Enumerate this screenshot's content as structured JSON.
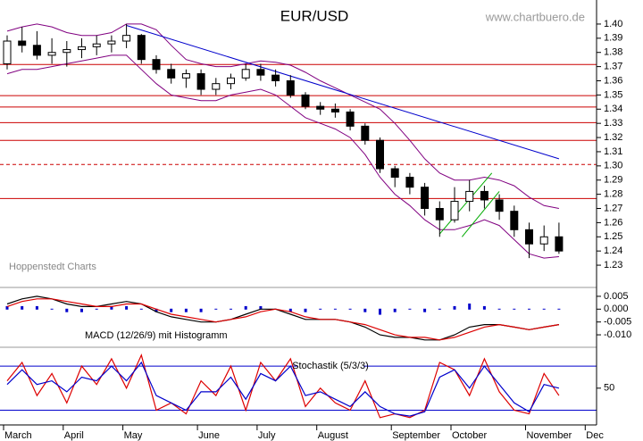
{
  "chart_data": [
    {
      "type": "candlestick",
      "title": "EUR/USD",
      "source": "www.chartbuero.de",
      "annotation": "Hoppenstedt Charts",
      "categories": [
        "March",
        null,
        null,
        null,
        "April",
        null,
        null,
        null,
        "May",
        null,
        null,
        null,
        null,
        "June",
        null,
        null,
        null,
        "July",
        null,
        null,
        null,
        "August",
        null,
        null,
        null,
        null,
        "September",
        null,
        null,
        null,
        "October",
        null,
        null,
        null,
        null,
        "November",
        null,
        null,
        null,
        "Dec"
      ],
      "open": [
        1.372,
        1.388,
        1.385,
        1.378,
        1.38,
        1.382,
        1.384,
        1.386,
        1.388,
        1.392,
        1.375,
        1.368,
        1.362,
        1.365,
        1.354,
        1.358,
        1.362,
        1.368,
        1.364,
        1.36,
        1.35,
        1.342,
        1.34,
        1.338,
        1.328,
        1.318,
        1.298,
        1.292,
        1.285,
        1.27,
        1.262,
        1.275,
        1.282,
        1.276,
        1.268,
        1.255,
        1.245,
        1.25,
        null,
        null
      ],
      "high": [
        1.392,
        1.398,
        1.395,
        1.39,
        1.388,
        1.39,
        1.392,
        1.392,
        1.4,
        1.393,
        1.378,
        1.372,
        1.368,
        1.368,
        1.362,
        1.365,
        1.372,
        1.372,
        1.368,
        1.364,
        1.352,
        1.345,
        1.344,
        1.34,
        1.33,
        1.32,
        1.3,
        1.295,
        1.288,
        1.275,
        1.285,
        1.29,
        1.286,
        1.28,
        1.272,
        1.26,
        1.258,
        1.26,
        null,
        null
      ],
      "low": [
        1.368,
        1.38,
        1.375,
        1.372,
        1.37,
        1.376,
        1.378,
        1.38,
        1.383,
        1.372,
        1.365,
        1.358,
        1.355,
        1.35,
        1.35,
        1.354,
        1.36,
        1.36,
        1.356,
        1.348,
        1.34,
        1.336,
        1.334,
        1.325,
        1.315,
        1.295,
        1.285,
        1.28,
        1.265,
        1.25,
        1.26,
        1.268,
        1.27,
        1.262,
        1.25,
        1.235,
        1.24,
        1.238,
        null,
        null
      ],
      "close": [
        1.388,
        1.385,
        1.378,
        1.38,
        1.382,
        1.384,
        1.386,
        1.388,
        1.392,
        1.375,
        1.368,
        1.362,
        1.365,
        1.354,
        1.358,
        1.362,
        1.368,
        1.364,
        1.36,
        1.35,
        1.342,
        1.34,
        1.338,
        1.328,
        1.318,
        1.298,
        1.292,
        1.285,
        1.27,
        1.262,
        1.275,
        1.282,
        1.276,
        1.268,
        1.255,
        1.245,
        1.25,
        1.24,
        null,
        null
      ],
      "candle_color": "#000000",
      "bands": {
        "color": "#800080",
        "upper": [
          1.395,
          1.398,
          1.4,
          1.398,
          1.394,
          1.392,
          1.392,
          1.394,
          1.4,
          1.4,
          1.396,
          1.385,
          1.375,
          1.372,
          1.37,
          1.37,
          1.372,
          1.374,
          1.373,
          1.371,
          1.366,
          1.36,
          1.355,
          1.35,
          1.345,
          1.34,
          1.33,
          1.318,
          1.305,
          1.295,
          1.29,
          1.29,
          1.292,
          1.29,
          1.286,
          1.278,
          1.272,
          1.27,
          null,
          null
        ],
        "lower": [
          1.365,
          1.368,
          1.368,
          1.37,
          1.372,
          1.374,
          1.376,
          1.378,
          1.378,
          1.368,
          1.358,
          1.35,
          1.348,
          1.346,
          1.346,
          1.35,
          1.352,
          1.354,
          1.35,
          1.342,
          1.334,
          1.33,
          1.326,
          1.32,
          1.308,
          1.292,
          1.28,
          1.272,
          1.262,
          1.255,
          1.255,
          1.258,
          1.262,
          1.258,
          1.248,
          1.238,
          1.235,
          1.236,
          null,
          null
        ]
      },
      "levels": [
        {
          "value": 1.3715
        },
        {
          "value": 1.3495
        },
        {
          "value": 1.3415
        },
        {
          "value": 1.3305
        },
        {
          "value": 1.318
        },
        {
          "value": 1.301,
          "dashed": true
        },
        {
          "value": 1.277
        }
      ],
      "level_color": "#cc0000",
      "trendline": {
        "color": "#0000cc",
        "x": [
          8,
          37
        ],
        "y": [
          1.399,
          1.305
        ]
      },
      "channel": {
        "color": "#00aa00",
        "lines": [
          {
            "x": [
              29,
              32.5
            ],
            "y": [
              1.252,
              1.295
            ]
          },
          {
            "x": [
              30.5,
              33
            ],
            "y": [
              1.25,
              1.282
            ]
          }
        ]
      },
      "ylim": [
        1.2143,
        1.4157
      ],
      "yticks": [
        {
          "value": 1.23,
          "label": "1.23"
        },
        {
          "value": 1.24,
          "label": "1.24"
        },
        {
          "value": 1.25,
          "label": "1.25"
        },
        {
          "value": 1.26,
          "label": "1.26"
        },
        {
          "value": 1.27,
          "label": "1.27"
        },
        {
          "value": 1.28,
          "label": "1.28"
        },
        {
          "value": 1.29,
          "label": "1.29"
        },
        {
          "value": 1.3,
          "label": "1.30"
        },
        {
          "value": 1.31,
          "label": "1.31"
        },
        {
          "value": 1.32,
          "label": "1.32"
        },
        {
          "value": 1.33,
          "label": "1.33"
        },
        {
          "value": 1.34,
          "label": "1.34"
        },
        {
          "value": 1.35,
          "label": "1.35"
        },
        {
          "value": 1.36,
          "label": "1.36"
        },
        {
          "value": 1.37,
          "label": "1.37"
        },
        {
          "value": 1.38,
          "label": "1.38"
        },
        {
          "value": 1.39,
          "label": "1.39"
        },
        {
          "value": 1.4,
          "label": "1.40"
        }
      ]
    },
    {
      "type": "line",
      "title": "MACD (12/26/9) mit Histogramm",
      "series": [
        {
          "color": "#000000",
          "values": [
            0.002,
            0.004,
            0.005,
            0.004,
            0.002,
            0.001,
            0.001,
            0.002,
            0.003,
            0.002,
            -0.001,
            -0.003,
            -0.004,
            -0.005,
            -0.005,
            -0.004,
            -0.002,
            0.0,
            0.0,
            -0.002,
            -0.004,
            -0.004,
            -0.004,
            -0.005,
            -0.007,
            -0.01,
            -0.011,
            -0.011,
            -0.012,
            -0.012,
            -0.01,
            -0.007,
            -0.006,
            -0.006,
            -0.007,
            -0.008,
            -0.007,
            -0.006,
            null,
            null
          ]
        },
        {
          "color": "#dd0000",
          "values": [
            0.001,
            0.003,
            0.004,
            0.004,
            0.003,
            0.002,
            0.001,
            0.001,
            0.002,
            0.002,
            0.0,
            -0.002,
            -0.003,
            -0.004,
            -0.005,
            -0.004,
            -0.003,
            -0.001,
            0.0,
            -0.001,
            -0.003,
            -0.004,
            -0.004,
            -0.005,
            -0.006,
            -0.008,
            -0.01,
            -0.011,
            -0.011,
            -0.012,
            -0.011,
            -0.009,
            -0.007,
            -0.006,
            -0.007,
            -0.008,
            -0.007,
            -0.006,
            null,
            null
          ]
        }
      ],
      "histogram": {
        "color": "#0000cc",
        "values": [
          0.001,
          0.001,
          0.001,
          0.0,
          -0.001,
          -0.001,
          0.0,
          0.001,
          0.001,
          0.0,
          -0.001,
          -0.001,
          -0.001,
          -0.001,
          0.0,
          0.0,
          0.001,
          0.001,
          0.0,
          -0.001,
          -0.001,
          0.0,
          0.0,
          0.0,
          -0.001,
          -0.002,
          -0.001,
          0.0,
          -0.001,
          0.0,
          0.001,
          0.002,
          0.001,
          0.0,
          0.0,
          0.0,
          0.0,
          0.0,
          null,
          null
        ]
      },
      "ylim": [
        -0.0145,
        0.0081
      ],
      "yticks": [
        0.005,
        {
          "value": 0,
          "label": "0.000"
        },
        -0.005,
        {
          "value": -0.01,
          "label": "-0.010"
        }
      ]
    },
    {
      "type": "line",
      "title": "Stochastik (5/3/3)",
      "series": [
        {
          "color": "#dd0000",
          "values": [
            60,
            85,
            40,
            70,
            30,
            80,
            55,
            90,
            50,
            95,
            20,
            30,
            15,
            60,
            40,
            80,
            20,
            85,
            60,
            90,
            25,
            50,
            30,
            20,
            60,
            10,
            15,
            10,
            20,
            85,
            75,
            40,
            90,
            45,
            20,
            15,
            70,
            40,
            null,
            null
          ]
        },
        {
          "color": "#0000cc",
          "values": [
            55,
            75,
            55,
            60,
            45,
            65,
            60,
            80,
            60,
            85,
            40,
            30,
            20,
            45,
            45,
            65,
            35,
            70,
            60,
            80,
            40,
            45,
            35,
            25,
            45,
            25,
            15,
            12,
            18,
            65,
            75,
            50,
            80,
            55,
            30,
            18,
            55,
            50,
            null,
            null
          ]
        }
      ],
      "levels": [
        80,
        20
      ],
      "level_color": "#0000cc",
      "ylim": [
        0,
        102
      ],
      "yticks": [
        50
      ]
    }
  ]
}
